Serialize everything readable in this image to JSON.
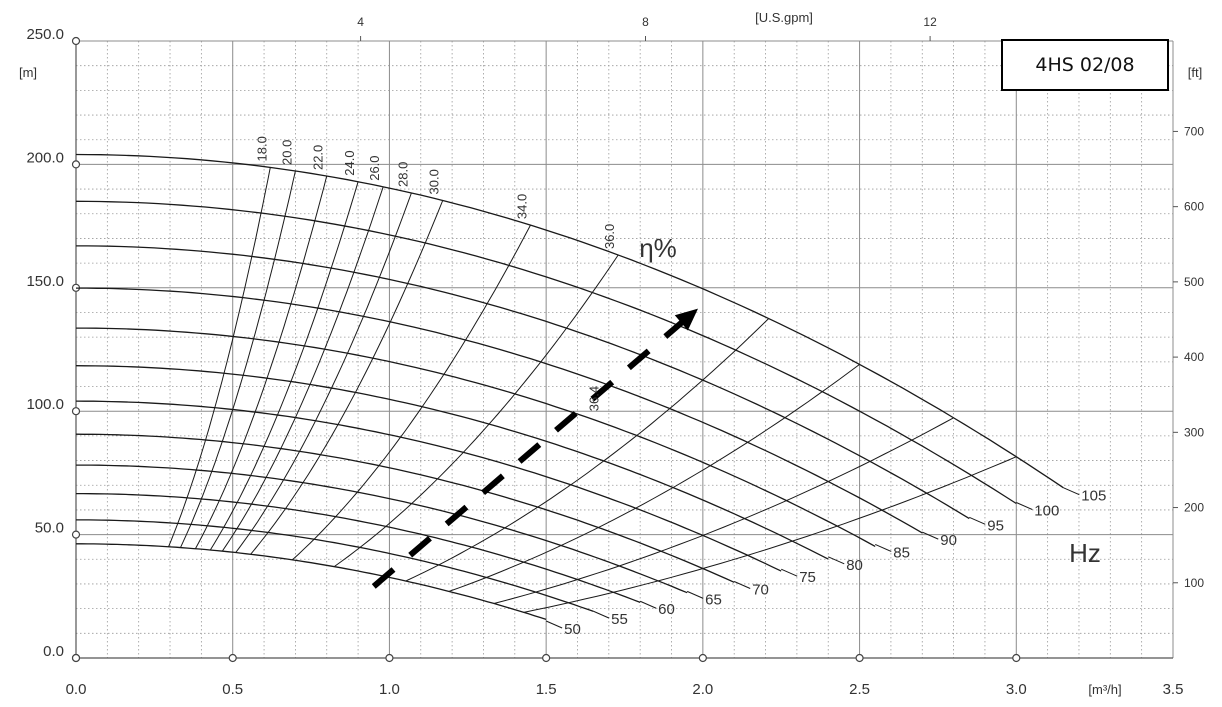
{
  "chart_data": {
    "type": "line",
    "title": "4HS 02/08",
    "x_unit_label": "[m³/h]",
    "top_unit_label": "[U.S.gpm]",
    "left_unit_label": "[m]",
    "right_unit_label": "[ft]",
    "xlim": [
      0,
      3.5
    ],
    "ylim": [
      0,
      250
    ],
    "x_ticks": [
      "0.0",
      "0.5",
      "1.0",
      "1.5",
      "2.0",
      "2.5",
      "3.0",
      "3.5"
    ],
    "y_ticks": [
      "0.0",
      "50.0",
      "100.0",
      "150.0",
      "200.0",
      "250.0"
    ],
    "gpm_ticks": [
      {
        "label": "4",
        "m3h": 0.908
      },
      {
        "label": "8",
        "m3h": 1.817
      },
      {
        "label": "12",
        "m3h": 2.725
      }
    ],
    "ft_ticks": [
      {
        "label": "100",
        "m": 30.48
      },
      {
        "label": "200",
        "m": 60.96
      },
      {
        "label": "300",
        "m": 91.44
      },
      {
        "label": "400",
        "m": 121.92
      },
      {
        "label": "500",
        "m": 152.4
      },
      {
        "label": "600",
        "m": 182.88
      },
      {
        "label": "700",
        "m": 213.36
      }
    ],
    "efficiency_label": "η%",
    "frequency_unit_label": "Hz",
    "grid": true,
    "shutoff_head_at_105hz": 204,
    "frequency_series": [
      {
        "name": "50",
        "frequency": 50,
        "end": [
          1.5,
          15
        ]
      },
      {
        "name": "55",
        "frequency": 55,
        "end": [
          1.65,
          19
        ]
      },
      {
        "name": "60",
        "frequency": 60,
        "end": [
          1.8,
          23
        ]
      },
      {
        "name": "65",
        "frequency": 65,
        "end": [
          1.95,
          27
        ]
      },
      {
        "name": "70",
        "frequency": 70,
        "end": [
          2.1,
          31
        ]
      },
      {
        "name": "75",
        "frequency": 75,
        "end": [
          2.25,
          36
        ]
      },
      {
        "name": "80",
        "frequency": 80,
        "end": [
          2.4,
          41
        ]
      },
      {
        "name": "85",
        "frequency": 85,
        "end": [
          2.55,
          46
        ]
      },
      {
        "name": "90",
        "frequency": 90,
        "end": [
          2.7,
          51
        ]
      },
      {
        "name": "95",
        "frequency": 95,
        "end": [
          2.85,
          57
        ]
      },
      {
        "name": "100",
        "frequency": 100,
        "end": [
          3.0,
          63
        ]
      },
      {
        "name": "105",
        "frequency": 105,
        "end": [
          3.15,
          69
        ]
      }
    ],
    "efficiency_series": [
      {
        "name": "18.0",
        "flow_at_105hz": 0.62
      },
      {
        "name": "20.0",
        "flow_at_105hz": 0.7
      },
      {
        "name": "22.0",
        "flow_at_105hz": 0.8
      },
      {
        "name": "24.0",
        "flow_at_105hz": 0.9
      },
      {
        "name": "26.0",
        "flow_at_105hz": 0.98
      },
      {
        "name": "28.0",
        "flow_at_105hz": 1.07
      },
      {
        "name": "30.0",
        "flow_at_105hz": 1.17
      },
      {
        "name": "34.0",
        "flow_at_105hz": 1.45
      },
      {
        "name": "36.0",
        "flow_at_105hz": 1.73
      },
      {
        "name": "",
        "flow_at_105hz": 2.21
      },
      {
        "name": "",
        "flow_at_105hz": 2.5
      },
      {
        "name": "",
        "flow_at_105hz": 2.8
      },
      {
        "name": "",
        "flow_at_105hz": 3.0
      }
    ],
    "bep_label": "36.4",
    "bep_label_point": [
      1.68,
      100
    ],
    "bep_arrow": {
      "from": [
        0.95,
        29
      ],
      "to": [
        1.97,
        140
      ]
    },
    "colors": {
      "curve": "#1a1a1a",
      "grid": "#9a9a9a",
      "arrow": "#000000"
    }
  }
}
